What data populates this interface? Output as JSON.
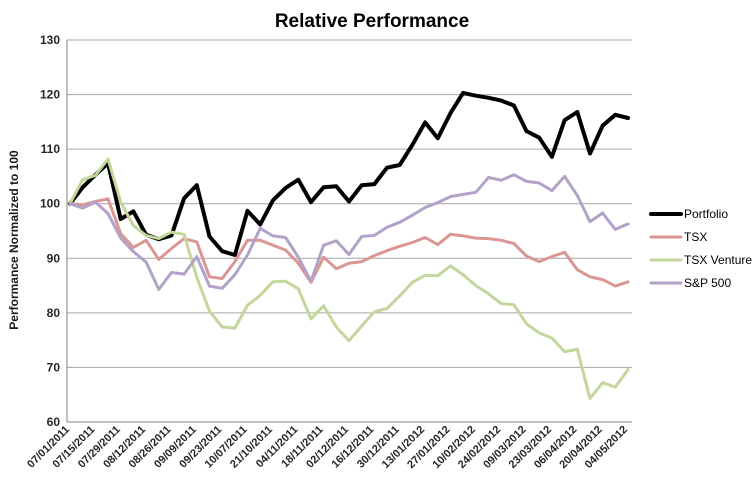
{
  "chart_data": {
    "type": "line",
    "title": "Relative Performance",
    "xlabel": "",
    "ylabel": "Performance Normalized to 100",
    "ylim": [
      60,
      130
    ],
    "yticks": [
      130,
      120,
      110,
      100,
      90,
      80,
      70,
      60
    ],
    "grid": true,
    "legend_position": "right",
    "x_labels": [
      "07/01/2011",
      "07/15/2011",
      "07/29/2011",
      "08/12/2011",
      "08/26/2011",
      "09/09/2011",
      "09/23/2011",
      "10/07/2011",
      "21/10/2011",
      "04/11/2011",
      "18/11/2011",
      "02/12/2011",
      "16/12/2011",
      "30/12/2011",
      "13/01/2012",
      "27/01/2012",
      "10/02/2012",
      "24/02/2012",
      "09/03/2012",
      "23/03/2012",
      "06/04/2012",
      "20/04/2012",
      "04/05/2012"
    ],
    "points_per_label": 2,
    "series": [
      {
        "name": "Portfolio",
        "color": "#000000",
        "line_width": 4,
        "values": [
          100,
          103.0,
          105.3,
          107.4,
          97.2,
          98.6,
          94.3,
          93.5,
          94.2,
          101.0,
          103.4,
          94.0,
          91.3,
          90.6,
          98.7,
          96.2,
          100.6,
          102.9,
          104.4,
          100.3,
          103.0,
          103.2,
          100.4,
          103.4,
          103.6,
          106.6,
          107.1,
          110.8,
          114.9,
          112.0,
          116.6,
          120.3,
          119.8,
          119.4,
          118.9,
          118.0,
          113.3,
          112.1,
          108.6,
          115.3,
          116.8,
          109.2,
          114.3,
          116.3,
          115.7
        ]
      },
      {
        "name": "TSX",
        "color": "#D99694",
        "line_width": 3,
        "values": [
          100,
          99.8,
          100.4,
          100.9,
          94.5,
          92.0,
          93.3,
          89.8,
          91.8,
          93.6,
          93.0,
          86.6,
          86.3,
          89.4,
          93.3,
          93.3,
          92.4,
          91.5,
          89.1,
          85.6,
          90.2,
          88.1,
          89.1,
          89.4,
          90.5,
          91.4,
          92.2,
          92.9,
          93.8,
          92.5,
          94.4,
          94.1,
          93.7,
          93.6,
          93.3,
          92.7,
          90.4,
          89.4,
          90.3,
          91.1,
          87.9,
          86.6,
          86.1,
          84.9,
          85.7
        ]
      },
      {
        "name": "TSX Venture",
        "color": "#C3D69B",
        "line_width": 3,
        "values": [
          100,
          104.4,
          105.2,
          108.2,
          100.3,
          96.0,
          94.2,
          93.6,
          94.8,
          94.4,
          86.5,
          80.3,
          77.4,
          77.2,
          81.4,
          83.2,
          85.7,
          85.8,
          84.4,
          78.9,
          81.3,
          77.4,
          74.9,
          77.6,
          80.2,
          80.8,
          83.1,
          85.6,
          86.9,
          86.8,
          88.6,
          87.0,
          85.0,
          83.5,
          81.7,
          81.5,
          78.0,
          76.3,
          75.4,
          72.9,
          73.3,
          64.3,
          67.2,
          66.4,
          69.6
        ]
      },
      {
        "name": "S&P 500",
        "color": "#B3A2C7",
        "line_width": 3,
        "values": [
          100,
          99.2,
          100.3,
          98.2,
          93.7,
          91.2,
          89.3,
          84.3,
          87.4,
          87.1,
          90.3,
          84.9,
          84.5,
          87.0,
          90.6,
          95.5,
          94.1,
          93.8,
          90.2,
          85.8,
          92.4,
          93.2,
          90.7,
          94.0,
          94.2,
          95.7,
          96.6,
          97.9,
          99.3,
          100.2,
          101.3,
          101.7,
          102.1,
          104.8,
          104.3,
          105.3,
          104.1,
          103.8,
          102.4,
          105.0,
          101.5,
          96.7,
          98.3,
          95.3,
          96.3
        ]
      }
    ]
  },
  "style": {
    "grid_color": "#A6A6A6",
    "axis_color": "#808080",
    "text_color": "#262626",
    "background": "#FFFFFF"
  }
}
